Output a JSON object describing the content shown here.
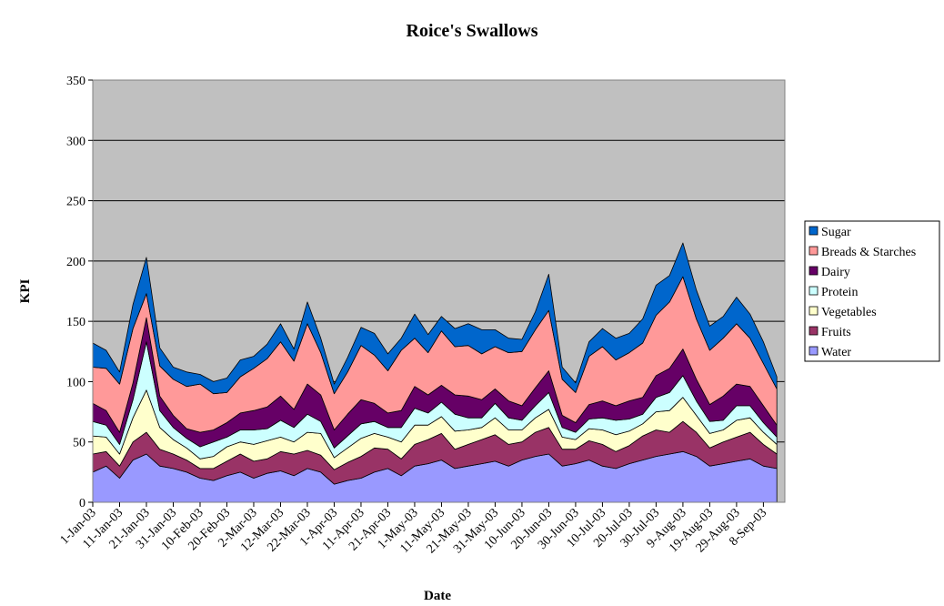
{
  "chart_data": {
    "type": "area",
    "stacked": true,
    "title": "Roice's Swallows",
    "xlabel": "Date",
    "ylabel": "KPI",
    "ylim": [
      0,
      350
    ],
    "yticks": [
      0,
      50,
      100,
      150,
      200,
      250,
      300,
      350
    ],
    "grid": true,
    "legend_position": "right",
    "plot_background": "#c0c0c0",
    "x_tick_labels": [
      "1-Jan-03",
      "11-Jan-03",
      "21-Jan-03",
      "31-Jan-03",
      "10-Feb-03",
      "20-Feb-03",
      "2-Mar-03",
      "12-Mar-03",
      "22-Mar-03",
      "1-Apr-03",
      "11-Apr-03",
      "21-Apr-03",
      "1-May-03",
      "11-May-03",
      "21-May-03",
      "31-May-03",
      "10-Jun-03",
      "20-Jun-03",
      "30-Jun-03",
      "10-Jul-03",
      "20-Jul-03",
      "30-Jul-03",
      "9-Aug-03",
      "19-Aug-03",
      "29-Aug-03",
      "8-Sep-03"
    ],
    "x_range": [
      "1-Jan-03",
      "16-Sep-03"
    ],
    "x_step_days": 5,
    "x_dates": [
      "1-Jan-03",
      "6-Jan-03",
      "11-Jan-03",
      "16-Jan-03",
      "21-Jan-03",
      "26-Jan-03",
      "31-Jan-03",
      "5-Feb-03",
      "10-Feb-03",
      "15-Feb-03",
      "20-Feb-03",
      "25-Feb-03",
      "2-Mar-03",
      "7-Mar-03",
      "12-Mar-03",
      "17-Mar-03",
      "22-Mar-03",
      "27-Mar-03",
      "1-Apr-03",
      "6-Apr-03",
      "11-Apr-03",
      "16-Apr-03",
      "21-Apr-03",
      "26-Apr-03",
      "1-May-03",
      "6-May-03",
      "11-May-03",
      "16-May-03",
      "21-May-03",
      "26-May-03",
      "31-May-03",
      "5-Jun-03",
      "10-Jun-03",
      "15-Jun-03",
      "20-Jun-03",
      "25-Jun-03",
      "30-Jun-03",
      "5-Jul-03",
      "10-Jul-03",
      "15-Jul-03",
      "20-Jul-03",
      "25-Jul-03",
      "30-Jul-03",
      "4-Aug-03",
      "9-Aug-03",
      "14-Aug-03",
      "19-Aug-03",
      "24-Aug-03",
      "29-Aug-03",
      "3-Sep-03",
      "8-Sep-03",
      "13-Sep-03"
    ],
    "series": [
      {
        "name": "Water",
        "color": "#9999ff",
        "values": [
          25,
          30,
          20,
          35,
          40,
          30,
          28,
          25,
          20,
          18,
          22,
          25,
          20,
          24,
          26,
          22,
          28,
          25,
          15,
          18,
          20,
          25,
          28,
          22,
          30,
          32,
          35,
          28,
          30,
          32,
          34,
          30,
          35,
          38,
          40,
          30,
          32,
          35,
          30,
          28,
          32,
          35,
          38,
          40,
          42,
          38,
          30,
          32,
          34,
          36,
          30,
          28
        ]
      },
      {
        "name": "Fruits",
        "color": "#993366",
        "values": [
          15,
          12,
          10,
          15,
          18,
          14,
          12,
          10,
          8,
          10,
          12,
          15,
          14,
          12,
          16,
          18,
          15,
          14,
          12,
          15,
          18,
          20,
          16,
          14,
          18,
          20,
          22,
          16,
          18,
          20,
          22,
          18,
          15,
          20,
          22,
          14,
          12,
          16,
          18,
          14,
          15,
          20,
          22,
          18,
          25,
          20,
          15,
          18,
          20,
          22,
          18,
          12
        ]
      },
      {
        "name": "Vegetables",
        "color": "#ffffcc",
        "values": [
          15,
          12,
          10,
          20,
          35,
          18,
          12,
          10,
          8,
          10,
          12,
          10,
          14,
          15,
          12,
          10,
          15,
          18,
          10,
          12,
          15,
          12,
          10,
          14,
          16,
          12,
          14,
          15,
          12,
          10,
          14,
          12,
          10,
          12,
          15,
          10,
          8,
          10,
          12,
          14,
          12,
          10,
          15,
          18,
          20,
          14,
          12,
          10,
          14,
          12,
          10,
          8
        ]
      },
      {
        "name": "Protein",
        "color": "#ccffff",
        "values": [
          12,
          10,
          8,
          15,
          40,
          14,
          10,
          8,
          10,
          12,
          8,
          10,
          12,
          10,
          14,
          12,
          15,
          10,
          8,
          10,
          12,
          10,
          8,
          12,
          14,
          10,
          12,
          14,
          10,
          8,
          12,
          10,
          8,
          10,
          14,
          8,
          6,
          8,
          10,
          12,
          10,
          8,
          12,
          15,
          18,
          12,
          10,
          8,
          12,
          10,
          8,
          6
        ]
      },
      {
        "name": "Dairy",
        "color": "#660066",
        "values": [
          15,
          12,
          10,
          14,
          20,
          12,
          10,
          8,
          12,
          10,
          12,
          14,
          16,
          18,
          20,
          15,
          25,
          22,
          15,
          18,
          20,
          15,
          12,
          14,
          18,
          15,
          14,
          16,
          18,
          15,
          12,
          14,
          12,
          15,
          18,
          10,
          8,
          12,
          14,
          12,
          15,
          14,
          18,
          20,
          22,
          18,
          14,
          20,
          18,
          16,
          14,
          10
        ]
      },
      {
        "name": "Breads & Starches",
        "color": "#ff9999",
        "values": [
          30,
          35,
          40,
          45,
          20,
          25,
          30,
          35,
          40,
          30,
          25,
          30,
          35,
          40,
          45,
          40,
          50,
          35,
          30,
          35,
          45,
          40,
          35,
          50,
          40,
          35,
          45,
          40,
          42,
          38,
          35,
          40,
          45,
          48,
          50,
          30,
          25,
          40,
          45,
          38,
          40,
          45,
          50,
          55,
          60,
          50,
          45,
          48,
          50,
          40,
          35,
          30
        ]
      },
      {
        "name": "Sugar",
        "color": "#0066cc",
        "values": [
          20,
          15,
          10,
          20,
          30,
          15,
          10,
          12,
          8,
          10,
          12,
          14,
          10,
          12,
          15,
          10,
          18,
          12,
          8,
          12,
          15,
          18,
          14,
          10,
          20,
          15,
          12,
          15,
          18,
          20,
          14,
          12,
          10,
          15,
          30,
          10,
          8,
          12,
          15,
          18,
          16,
          20,
          25,
          22,
          28,
          24,
          20,
          18,
          22,
          20,
          18,
          10
        ]
      }
    ]
  }
}
